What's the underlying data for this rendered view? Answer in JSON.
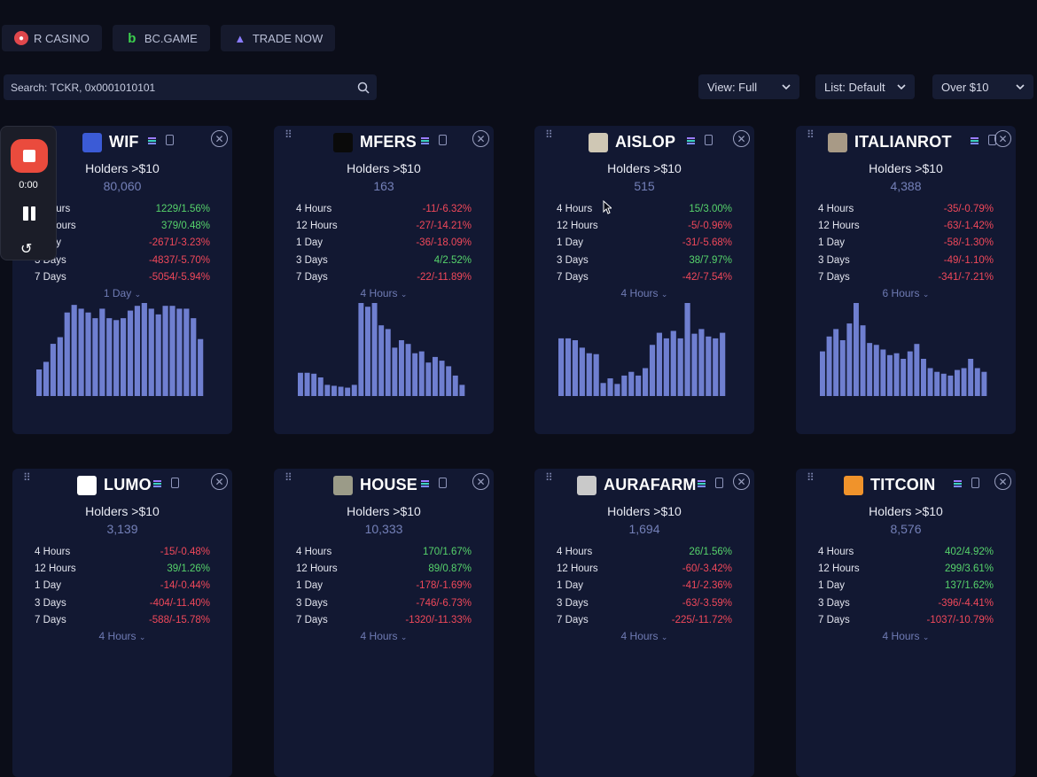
{
  "nav": {
    "links": [
      {
        "label": "R CASINO",
        "icon": "casino-icon",
        "color": "#e0474c"
      },
      {
        "label": "BC.GAME",
        "icon": "bcgame-icon",
        "color": "#3cd14e"
      },
      {
        "label": "TRADE NOW",
        "icon": "rocket-icon",
        "color": "#8a7cff"
      }
    ]
  },
  "search": {
    "placeholder": "Search: TCKR, 0x0001010101"
  },
  "filters": {
    "view": "View: Full",
    "list": "List: Default",
    "threshold": "Over $10"
  },
  "recorder": {
    "time": "0:00"
  },
  "cards": [
    {
      "name": "WIF",
      "holders_label": "Holders >$10",
      "holders": "80,060",
      "period": "1 Day",
      "stats": [
        {
          "k": "4 Hours",
          "v": "1229/1.56%",
          "s": "pos"
        },
        {
          "k": "12 Hours",
          "v": "379/0.48%",
          "s": "pos"
        },
        {
          "k": "1 Day",
          "v": "-2671/-3.23%",
          "s": "neg"
        },
        {
          "k": "3 Days",
          "v": "-4837/-5.70%",
          "s": "neg"
        },
        {
          "k": "7 Days",
          "v": "-5054/-5.94%",
          "s": "neg"
        }
      ],
      "bars": [
        28,
        36,
        55,
        62,
        88,
        96,
        92,
        88,
        82,
        92,
        82,
        80,
        82,
        90,
        95,
        98,
        92,
        86,
        95,
        95,
        92,
        92,
        82,
        60
      ]
    },
    {
      "name": "MFERS",
      "holders_label": "Holders >$10",
      "holders": "163",
      "period": "4 Hours",
      "stats": [
        {
          "k": "4 Hours",
          "v": "-11/-6.32%",
          "s": "neg"
        },
        {
          "k": "12 Hours",
          "v": "-27/-14.21%",
          "s": "neg"
        },
        {
          "k": "1 Day",
          "v": "-36/-18.09%",
          "s": "neg"
        },
        {
          "k": "3 Days",
          "v": "4/2.52%",
          "s": "pos"
        },
        {
          "k": "7 Days",
          "v": "-22/-11.89%",
          "s": "neg"
        }
      ],
      "bars": [
        25,
        25,
        24,
        20,
        12,
        11,
        10,
        9,
        12,
        100,
        96,
        100,
        76,
        72,
        52,
        60,
        56,
        46,
        48,
        36,
        42,
        38,
        32,
        22,
        12
      ]
    },
    {
      "name": "AISLOP",
      "holders_label": "Holders >$10",
      "holders": "515",
      "period": "4 Hours",
      "stats": [
        {
          "k": "4 Hours",
          "v": "15/3.00%",
          "s": "pos"
        },
        {
          "k": "12 Hours",
          "v": "-5/-0.96%",
          "s": "neg"
        },
        {
          "k": "1 Day",
          "v": "-31/-5.68%",
          "s": "neg"
        },
        {
          "k": "3 Days",
          "v": "38/7.97%",
          "s": "pos"
        },
        {
          "k": "7 Days",
          "v": "-42/-7.54%",
          "s": "neg"
        }
      ],
      "bars": [
        62,
        62,
        60,
        52,
        46,
        45,
        14,
        19,
        13,
        22,
        26,
        22,
        30,
        55,
        68,
        62,
        70,
        62,
        100,
        67,
        72,
        64,
        62,
        68
      ]
    },
    {
      "name": "ITALIANROT",
      "holders_label": "Holders >$10",
      "holders": "4,388",
      "period": "6 Hours",
      "stats": [
        {
          "k": "4 Hours",
          "v": "-35/-0.79%",
          "s": "neg"
        },
        {
          "k": "12 Hours",
          "v": "-63/-1.42%",
          "s": "neg"
        },
        {
          "k": "1 Day",
          "v": "-58/-1.30%",
          "s": "neg"
        },
        {
          "k": "3 Days",
          "v": "-49/-1.10%",
          "s": "neg"
        },
        {
          "k": "7 Days",
          "v": "-341/-7.21%",
          "s": "neg"
        }
      ],
      "bars": [
        48,
        64,
        72,
        60,
        78,
        100,
        76,
        57,
        55,
        50,
        44,
        46,
        40,
        48,
        56,
        40,
        30,
        26,
        24,
        22,
        28,
        30,
        40,
        30,
        26
      ]
    },
    {
      "name": "LUMO",
      "holders_label": "Holders >$10",
      "holders": "3,139",
      "period": "4 Hours",
      "stats": [
        {
          "k": "4 Hours",
          "v": "-15/-0.48%",
          "s": "neg"
        },
        {
          "k": "12 Hours",
          "v": "39/1.26%",
          "s": "pos"
        },
        {
          "k": "1 Day",
          "v": "-14/-0.44%",
          "s": "neg"
        },
        {
          "k": "3 Days",
          "v": "-404/-11.40%",
          "s": "neg"
        },
        {
          "k": "7 Days",
          "v": "-588/-15.78%",
          "s": "neg"
        }
      ],
      "bars": []
    },
    {
      "name": "HOUSE",
      "holders_label": "Holders >$10",
      "holders": "10,333",
      "period": "4 Hours",
      "stats": [
        {
          "k": "4 Hours",
          "v": "170/1.67%",
          "s": "pos"
        },
        {
          "k": "12 Hours",
          "v": "89/0.87%",
          "s": "pos"
        },
        {
          "k": "1 Day",
          "v": "-178/-1.69%",
          "s": "neg"
        },
        {
          "k": "3 Days",
          "v": "-746/-6.73%",
          "s": "neg"
        },
        {
          "k": "7 Days",
          "v": "-1320/-11.33%",
          "s": "neg"
        }
      ],
      "bars": []
    },
    {
      "name": "AURAFARM",
      "holders_label": "Holders >$10",
      "holders": "1,694",
      "period": "4 Hours",
      "stats": [
        {
          "k": "4 Hours",
          "v": "26/1.56%",
          "s": "pos"
        },
        {
          "k": "12 Hours",
          "v": "-60/-3.42%",
          "s": "neg"
        },
        {
          "k": "1 Day",
          "v": "-41/-2.36%",
          "s": "neg"
        },
        {
          "k": "3 Days",
          "v": "-63/-3.59%",
          "s": "neg"
        },
        {
          "k": "7 Days",
          "v": "-225/-11.72%",
          "s": "neg"
        }
      ],
      "bars": []
    },
    {
      "name": "TITCOIN",
      "holders_label": "Holders >$10",
      "holders": "8,576",
      "period": "4 Hours",
      "stats": [
        {
          "k": "4 Hours",
          "v": "402/4.92%",
          "s": "pos"
        },
        {
          "k": "12 Hours",
          "v": "299/3.61%",
          "s": "pos"
        },
        {
          "k": "1 Day",
          "v": "137/1.62%",
          "s": "pos"
        },
        {
          "k": "3 Days",
          "v": "-396/-4.41%",
          "s": "neg"
        },
        {
          "k": "7 Days",
          "v": "-1037/-10.79%",
          "s": "neg"
        }
      ],
      "bars": []
    }
  ]
}
